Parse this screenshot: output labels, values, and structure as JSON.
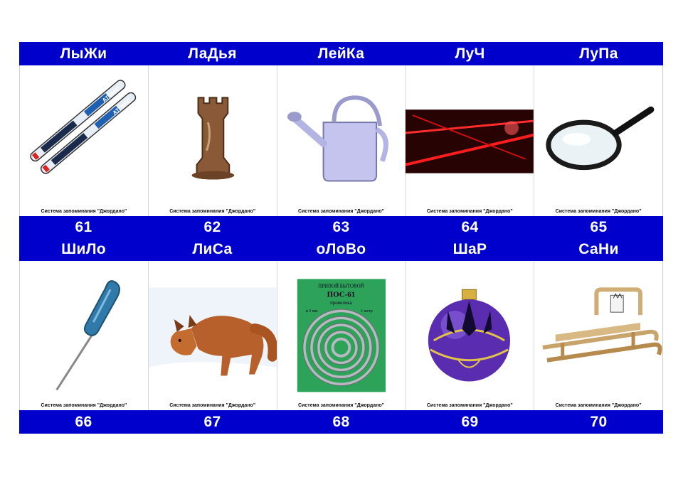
{
  "caption": "Система запоминания \"Джордано\"",
  "row1": {
    "words": [
      "ЛыЖи",
      "ЛаДья",
      "ЛейКа",
      "ЛуЧ",
      "ЛуПа"
    ],
    "numbers": [
      "61",
      "62",
      "63",
      "64",
      "65"
    ],
    "icons": [
      "skis-icon",
      "chess-rook-icon",
      "watering-can-icon",
      "laser-beam-icon",
      "magnifier-icon"
    ]
  },
  "row2": {
    "words": [
      "ШиЛо",
      "ЛиСа",
      "оЛоВо",
      "ШаР",
      "СаНи"
    ],
    "numbers": [
      "66",
      "67",
      "68",
      "69",
      "70"
    ],
    "icons": [
      "awl-icon",
      "fox-icon",
      "solder-coil-icon",
      "christmas-ball-icon",
      "sled-icon"
    ]
  },
  "package_text": {
    "top": "ПРИПОЙ БЫТОВОЙ",
    "mark": "ПОС-61",
    "label": "проволока",
    "spec_left": "ø 2 мм",
    "spec_right": "1 метр"
  },
  "ski_text": "ATOMIC",
  "colors": {
    "band": "#0000cc",
    "text": "#ffffff"
  }
}
